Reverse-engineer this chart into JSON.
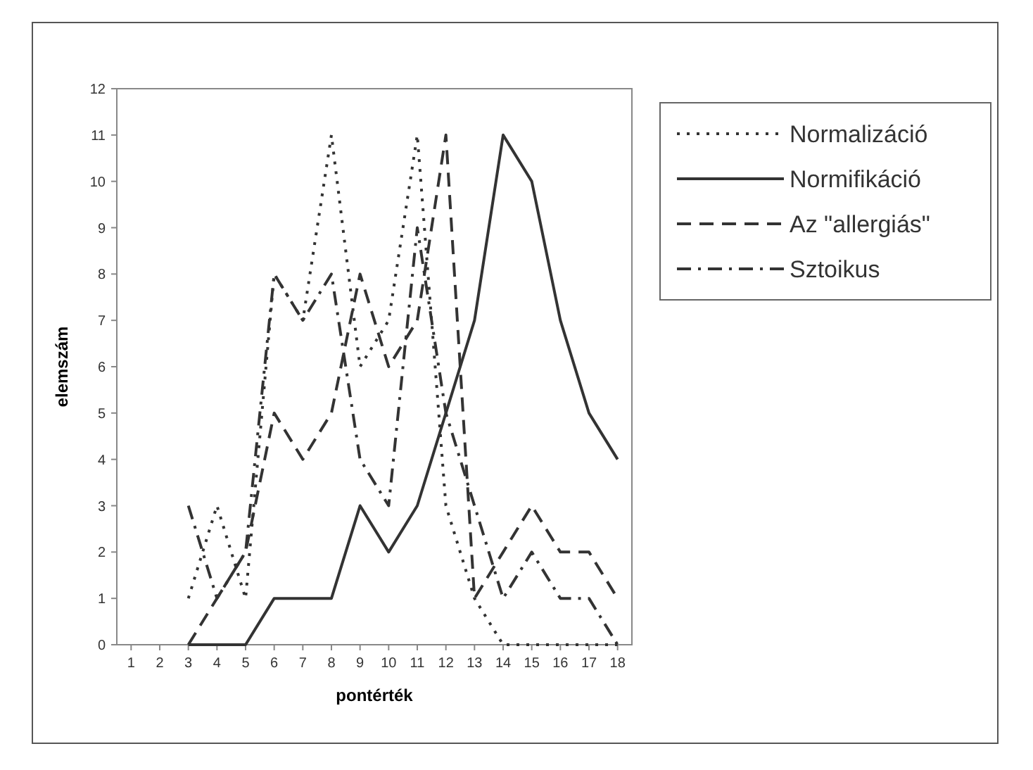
{
  "chart_data": {
    "type": "line",
    "xlabel": "pontérték",
    "ylabel": "elemszám",
    "categories": [
      "1",
      "2",
      "3",
      "4",
      "5",
      "6",
      "7",
      "8",
      "9",
      "10",
      "11",
      "12",
      "13",
      "14",
      "15",
      "16",
      "17",
      "18"
    ],
    "ylim": [
      0,
      12
    ],
    "yticks": [
      0,
      1,
      2,
      3,
      4,
      5,
      6,
      7,
      8,
      9,
      10,
      11,
      12
    ],
    "legend": "top right",
    "grid": false,
    "marker": "none",
    "series": [
      {
        "name": "Normalizáció",
        "color": "#333333",
        "line_style": "dotted",
        "values": [
          null,
          null,
          1,
          3,
          1,
          8,
          7,
          11,
          6,
          7,
          11,
          3,
          1,
          0,
          0,
          0,
          0,
          0
        ]
      },
      {
        "name": "Normifikáció",
        "color": "#333333",
        "line_style": "solid",
        "values": [
          null,
          null,
          0,
          0,
          0,
          1,
          1,
          1,
          3,
          2,
          3,
          5,
          7,
          11,
          10,
          7,
          5,
          4
        ]
      },
      {
        "name": "Az \"allergiás\"",
        "color": "#333333",
        "line_style": "dashed",
        "values": [
          null,
          null,
          0,
          1,
          2,
          5,
          4,
          5,
          8,
          6,
          7,
          11,
          1,
          2,
          3,
          2,
          2,
          1
        ]
      },
      {
        "name": "Sztoikus",
        "color": "#333333",
        "line_style": "dashdot",
        "values": [
          null,
          null,
          3,
          1,
          2,
          8,
          7,
          8,
          4,
          3,
          9,
          5,
          3,
          1,
          2,
          1,
          1,
          0
        ]
      }
    ]
  }
}
